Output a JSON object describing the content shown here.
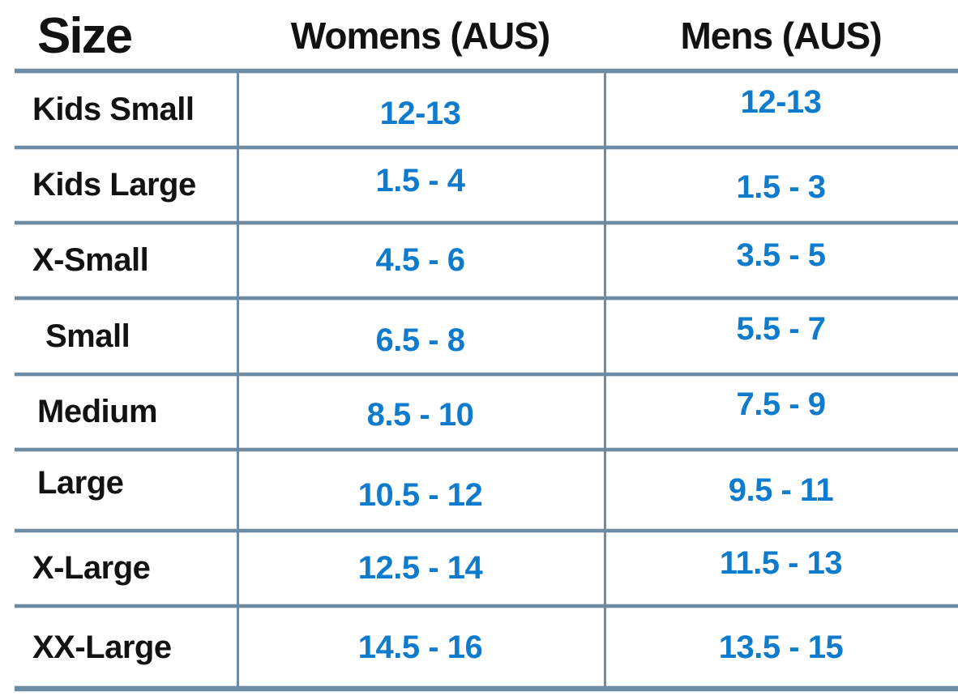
{
  "theme": {
    "value-blue": "#0e7bcd",
    "line-color": "#6d8ba3",
    "text-color": "#121212"
  },
  "chart_data": {
    "type": "table",
    "columns": [
      "Size",
      "Womens (AUS)",
      "Mens (AUS)"
    ],
    "rows": [
      {
        "size": "Kids Small",
        "womens_aus": "12-13",
        "mens_aus": "12-13"
      },
      {
        "size": "Kids Large",
        "womens_aus": "1.5 - 4",
        "mens_aus": "1.5 - 3"
      },
      {
        "size": "X-Small",
        "womens_aus": "4.5 - 6",
        "mens_aus": "3.5 - 5"
      },
      {
        "size": "Small",
        "womens_aus": "6.5 - 8",
        "mens_aus": "5.5 - 7"
      },
      {
        "size": "Medium",
        "womens_aus": "8.5 - 10",
        "mens_aus": "7.5 - 9"
      },
      {
        "size": "Large",
        "womens_aus": "10.5 - 12",
        "mens_aus": "9.5 - 11"
      },
      {
        "size": "X-Large",
        "womens_aus": "12.5 - 14",
        "mens_aus": "11.5 - 13"
      },
      {
        "size": "XX-Large",
        "womens_aus": "14.5 - 16",
        "mens_aus": "13.5 - 15"
      }
    ]
  }
}
